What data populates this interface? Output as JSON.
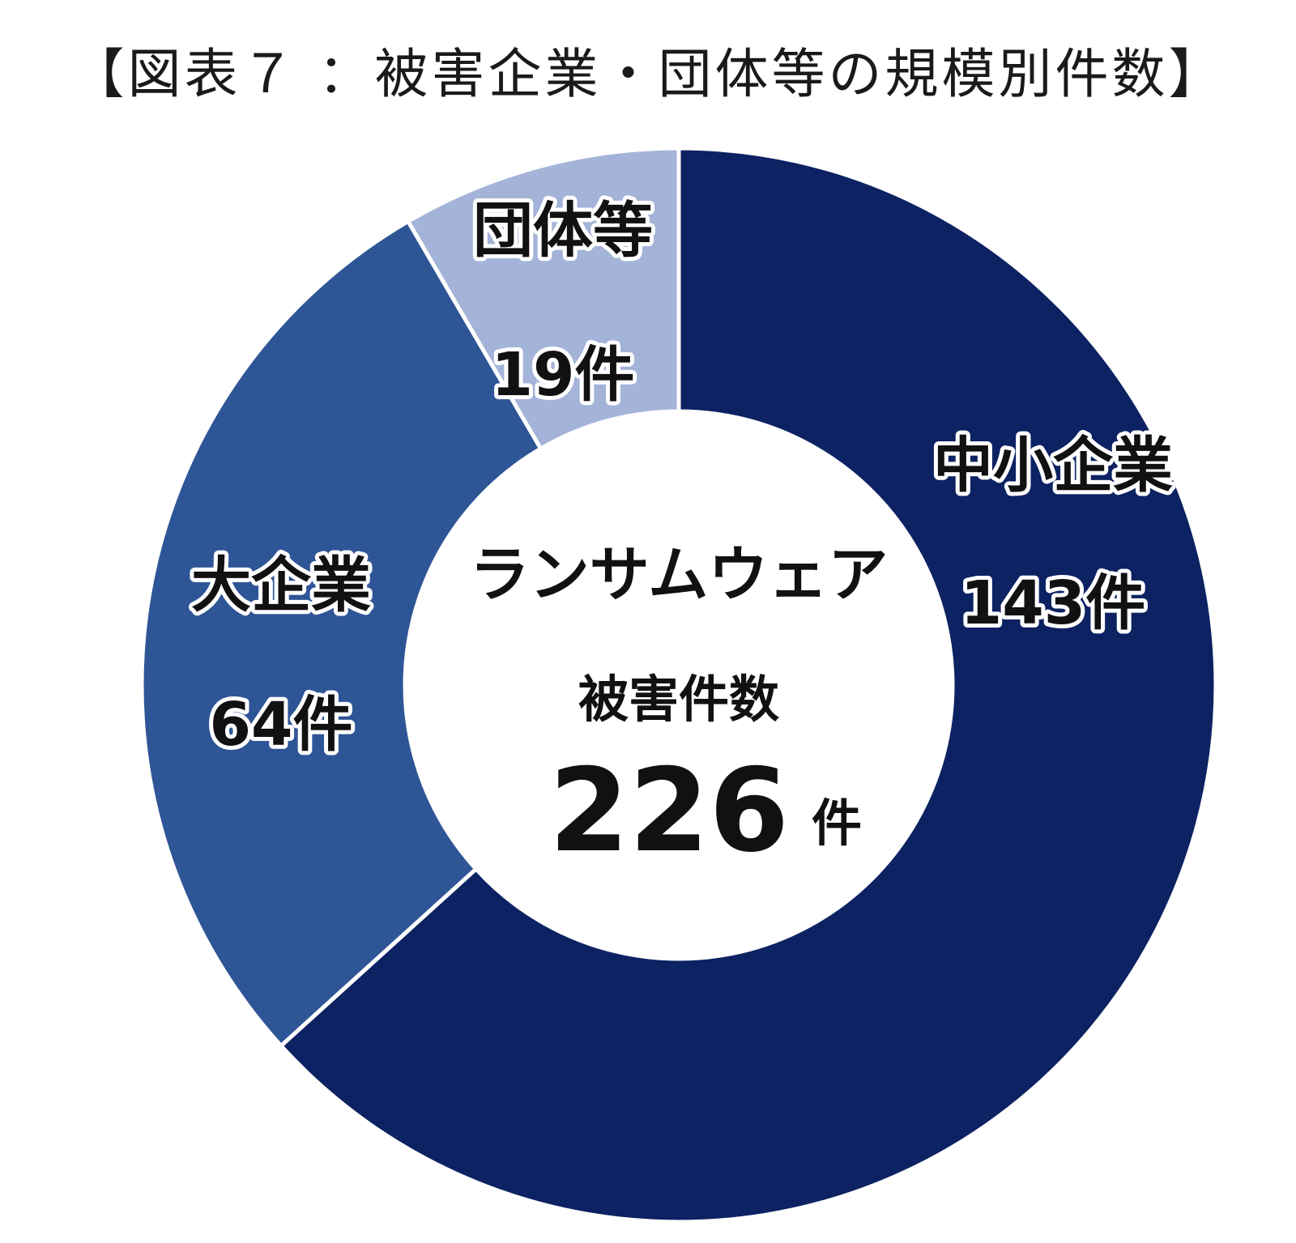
{
  "chart_data": {
    "type": "pie",
    "title": "【図表７ ：被害企業・団体等の規模別件数】",
    "unit": "件",
    "slices": [
      {
        "label": "中小企業",
        "value": 143,
        "value_text": "143件",
        "color": "#0c2262"
      },
      {
        "label": "大企業",
        "value": 64,
        "value_text": "64件",
        "color": "#2e5596"
      },
      {
        "label": "団体等",
        "value": 19,
        "value_text": "19件",
        "color": "#a4b3d8"
      }
    ],
    "center": {
      "line1": "ランサムウェア",
      "line2": "被害件数",
      "total": "226",
      "unit": "件"
    }
  }
}
